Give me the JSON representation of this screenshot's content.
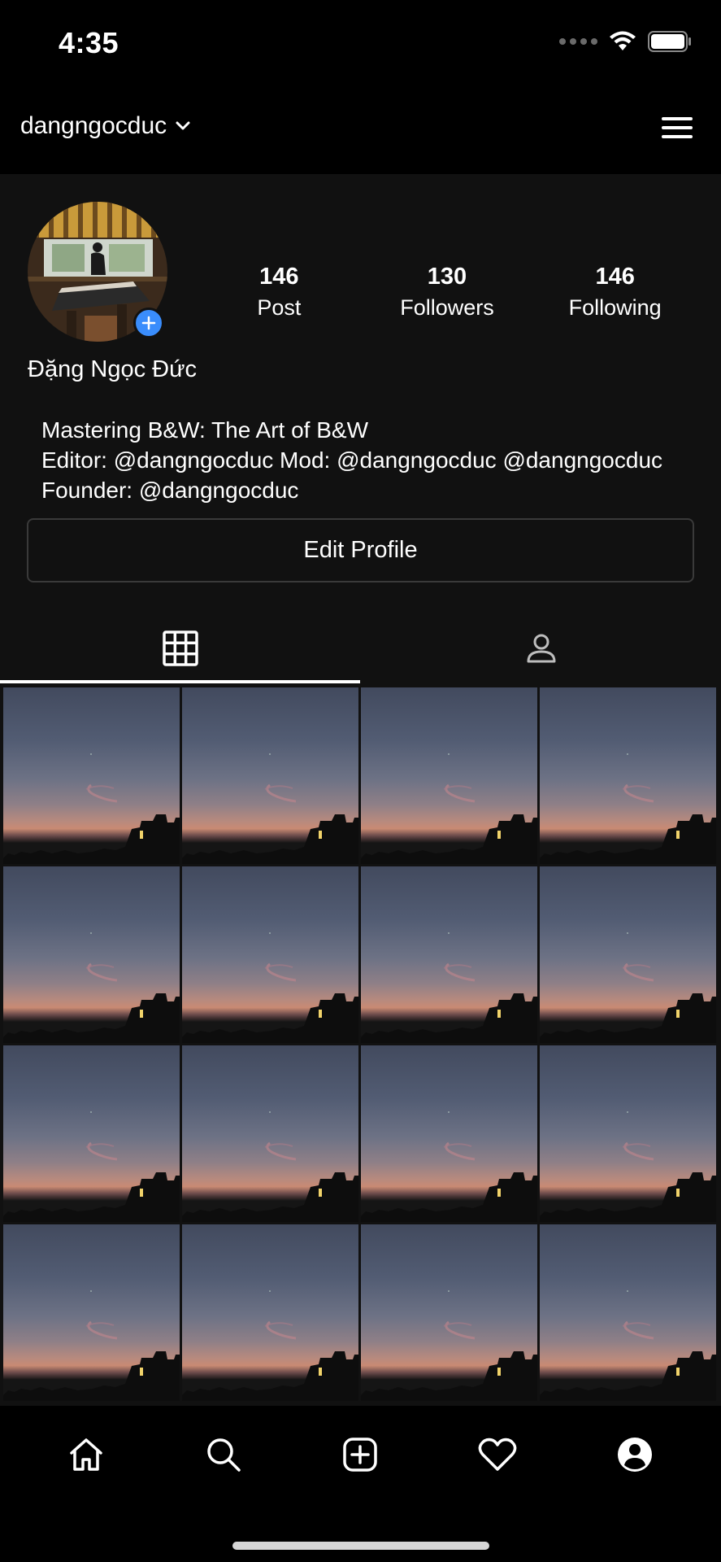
{
  "status_bar": {
    "time": "4:35"
  },
  "header": {
    "username": "dangngocduc"
  },
  "profile": {
    "display_name": "Đặng Ngọc Đức",
    "stats": [
      {
        "value": "146",
        "label": "Post"
      },
      {
        "value": "130",
        "label": "Followers"
      },
      {
        "value": "146",
        "label": "Following"
      }
    ],
    "bio_lines": [
      "Mastering B&W: The Art of B&W",
      "Editor: @dangngocduc Mod: @dangngocduc @dangngocduc",
      "Founder: @dangngocduc"
    ],
    "edit_button": "Edit Profile"
  },
  "tabs": [
    {
      "icon": "grid-icon",
      "active": true
    },
    {
      "icon": "person-tag-icon",
      "active": false
    }
  ],
  "photo_count": 16,
  "tab_bar": [
    {
      "icon": "home-icon"
    },
    {
      "icon": "search-icon"
    },
    {
      "icon": "add-post-icon"
    },
    {
      "icon": "heart-icon"
    },
    {
      "icon": "profile-icon"
    }
  ]
}
